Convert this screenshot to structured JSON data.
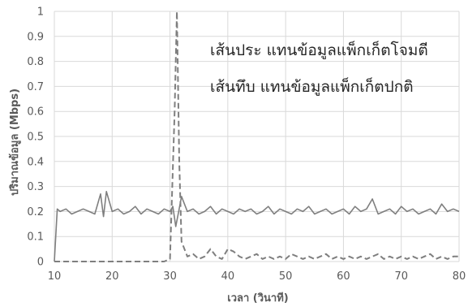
{
  "chart_data": {
    "type": "line",
    "title": "",
    "xlabel": "เวลา (วินาที)",
    "ylabel": "ปริมาณข้อมูล (Mbps)",
    "xlim": [
      10,
      80
    ],
    "ylim": [
      0,
      1
    ],
    "xticks": [
      10,
      20,
      30,
      40,
      50,
      60,
      70,
      80
    ],
    "yticks": [
      0,
      0.1,
      0.2,
      0.3,
      0.4,
      0.5,
      0.6,
      0.7,
      0.8,
      0.9,
      1
    ],
    "grid": {
      "vertical": true,
      "horizontal": true
    },
    "legend": "none",
    "annotations": [
      {
        "text": "เส้นประ แทนข้อมูลแพ็กเก็ตโจมตี"
      },
      {
        "text": "เส้นทึบ แทนข้อมูลแพ็กเก็ตปกติ"
      }
    ],
    "series": [
      {
        "style": "solid",
        "color": "#7f7f7f",
        "x": [
          10,
          10.5,
          11,
          12,
          13,
          14,
          15,
          16,
          17,
          18,
          18.5,
          19,
          20,
          21,
          22,
          23,
          24,
          25,
          26,
          27,
          28,
          29,
          30,
          30.5,
          31,
          31.5,
          32,
          33,
          34,
          35,
          36,
          37,
          38,
          39,
          40,
          41,
          42,
          43,
          44,
          45,
          46,
          47,
          48,
          49,
          50,
          51,
          52,
          53,
          54,
          55,
          56,
          57,
          58,
          59,
          60,
          61,
          62,
          63,
          64,
          65,
          66,
          67,
          68,
          69,
          70,
          71,
          72,
          73,
          74,
          75,
          76,
          77,
          78,
          79,
          80
        ],
        "values": [
          0,
          0.21,
          0.2,
          0.21,
          0.19,
          0.2,
          0.21,
          0.2,
          0.19,
          0.27,
          0.18,
          0.28,
          0.2,
          0.21,
          0.19,
          0.2,
          0.22,
          0.19,
          0.21,
          0.2,
          0.19,
          0.21,
          0.2,
          0.22,
          0.14,
          0.2,
          0.26,
          0.2,
          0.21,
          0.19,
          0.2,
          0.22,
          0.19,
          0.21,
          0.2,
          0.19,
          0.21,
          0.2,
          0.21,
          0.19,
          0.2,
          0.22,
          0.19,
          0.21,
          0.2,
          0.19,
          0.21,
          0.2,
          0.22,
          0.19,
          0.2,
          0.21,
          0.19,
          0.2,
          0.21,
          0.19,
          0.22,
          0.2,
          0.21,
          0.25,
          0.19,
          0.2,
          0.21,
          0.19,
          0.22,
          0.2,
          0.21,
          0.19,
          0.2,
          0.21,
          0.19,
          0.23,
          0.2,
          0.21,
          0.2
        ]
      },
      {
        "style": "dashed",
        "color": "#7f7f7f",
        "x": [
          10,
          20,
          29,
          30,
          30.8,
          31.2,
          31.6,
          32,
          33,
          34,
          35,
          36,
          37,
          38,
          39,
          40,
          41,
          42,
          43,
          44,
          45,
          46,
          47,
          48,
          49,
          50,
          51,
          52,
          53,
          54,
          55,
          56,
          57,
          58,
          59,
          60,
          61,
          62,
          63,
          64,
          65,
          66,
          67,
          68,
          69,
          70,
          71,
          72,
          73,
          74,
          75,
          76,
          77,
          78,
          79,
          80
        ],
        "values": [
          0,
          0,
          0,
          0.01,
          0.6,
          1,
          0.4,
          0.08,
          0.02,
          0.03,
          0.01,
          0.02,
          0.05,
          0.02,
          0.01,
          0.05,
          0.04,
          0.02,
          0.01,
          0.02,
          0.03,
          0.01,
          0.02,
          0.01,
          0.02,
          0.01,
          0.03,
          0.02,
          0.01,
          0.02,
          0.01,
          0.02,
          0.03,
          0.01,
          0.02,
          0.01,
          0.02,
          0.01,
          0.02,
          0.01,
          0.02,
          0.03,
          0.01,
          0.02,
          0.01,
          0.02,
          0.01,
          0.02,
          0.01,
          0.02,
          0.03,
          0.01,
          0.02,
          0.01,
          0.02,
          0.02
        ]
      }
    ]
  }
}
